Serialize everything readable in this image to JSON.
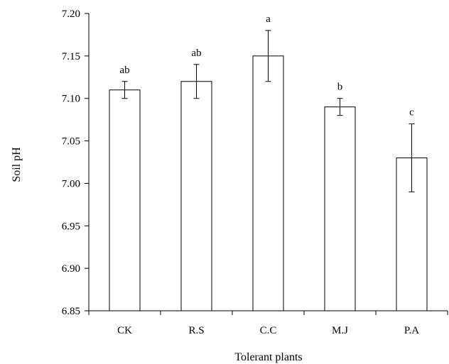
{
  "chart_data": {
    "type": "bar",
    "categories": [
      "CK",
      "R.S",
      "C.C",
      "M.J",
      "P.A"
    ],
    "values": [
      7.11,
      7.12,
      7.15,
      7.09,
      7.03
    ],
    "error_low": [
      7.1,
      7.1,
      7.12,
      7.08,
      6.99
    ],
    "error_high": [
      7.12,
      7.14,
      7.18,
      7.1,
      7.07
    ],
    "significance_labels": [
      "ab",
      "ab",
      "a",
      "b",
      "c"
    ],
    "title": "",
    "xlabel": "Tolerant plants",
    "ylabel": "Soil pH",
    "ylim": [
      6.85,
      7.2
    ],
    "yticks": [
      "6.85",
      "6.90",
      "6.95",
      "7.00",
      "7.05",
      "7.10",
      "7.15",
      "7.20"
    ],
    "grid": false,
    "bar_fill": "#ffffff",
    "bar_stroke": "#000000"
  }
}
